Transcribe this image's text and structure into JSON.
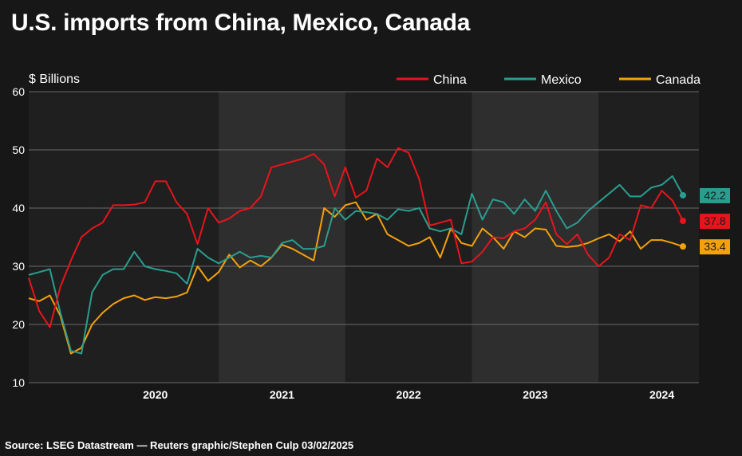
{
  "title": "U.S. imports from China, Mexico, Canada",
  "source": "Source: LSEG Datastream — Reuters graphic/Stephen Culp 03/02/2025",
  "chart_data": {
    "type": "line",
    "title": "U.S. imports from China, Mexico, Canada",
    "ylabel": "$ Billions",
    "ylim": [
      10,
      60
    ],
    "yticks": [
      10,
      20,
      30,
      40,
      50,
      60
    ],
    "xticks": [
      "2020",
      "2021",
      "2022",
      "2023",
      "2024"
    ],
    "x_start": "2019-07",
    "x_end": "2024-12",
    "grid": true,
    "legend_position": "top-right",
    "series": [
      {
        "name": "China",
        "color": "#e8141c",
        "end_label": "37.8",
        "values": [
          28.0,
          22.3,
          19.5,
          26.5,
          31.0,
          35.0,
          36.5,
          37.5,
          40.5,
          40.5,
          40.6,
          41.0,
          44.6,
          44.6,
          41.0,
          39.0,
          33.8,
          40.0,
          37.5,
          38.2,
          39.5,
          40.0,
          42.0,
          47.0,
          47.5,
          48.0,
          48.5,
          49.3,
          47.5,
          42.0,
          47.0,
          41.8,
          43.0,
          48.5,
          47.0,
          50.3,
          49.5,
          45.0,
          37.0,
          37.5,
          38.0,
          30.5,
          30.8,
          32.5,
          35.0,
          34.8,
          36.0,
          36.5,
          38.0,
          41.0,
          35.5,
          33.8,
          35.5,
          32.0,
          30.0,
          31.5,
          35.5,
          34.5,
          40.5,
          40.0,
          43.0,
          41.3,
          37.8
        ]
      },
      {
        "name": "Mexico",
        "color": "#2a9d8f",
        "end_label": "42.2",
        "values": [
          28.5,
          29.0,
          29.5,
          22.0,
          15.5,
          15.0,
          25.5,
          28.5,
          29.5,
          29.5,
          32.5,
          30.0,
          29.5,
          29.2,
          28.8,
          27.0,
          33.0,
          31.5,
          30.5,
          31.5,
          32.5,
          31.5,
          31.8,
          31.5,
          34.0,
          34.5,
          33.0,
          33.0,
          33.5,
          40.0,
          38.0,
          39.5,
          39.3,
          39.0,
          38.0,
          39.8,
          39.5,
          40.0,
          36.5,
          36.0,
          36.5,
          35.5,
          42.5,
          38.0,
          41.5,
          41.0,
          39.0,
          41.5,
          39.5,
          43.0,
          39.5,
          36.5,
          37.5,
          39.5,
          41.0,
          42.5,
          44.0,
          42.0,
          42.0,
          43.5,
          44.0,
          45.5,
          42.2
        ]
      },
      {
        "name": "Canada",
        "color": "#f4a10b",
        "end_label": "33.4",
        "values": [
          24.5,
          24.0,
          25.0,
          21.5,
          15.0,
          16.0,
          20.0,
          22.0,
          23.5,
          24.5,
          25.0,
          24.2,
          24.7,
          24.5,
          24.8,
          25.5,
          30.0,
          27.5,
          29.0,
          32.0,
          29.8,
          31.0,
          30.0,
          31.5,
          33.7,
          33.0,
          32.0,
          31.0,
          40.0,
          38.5,
          40.5,
          41.0,
          38.0,
          39.0,
          35.5,
          34.5,
          33.5,
          34.0,
          35.0,
          31.5,
          36.5,
          34.0,
          33.5,
          36.5,
          35.0,
          33.0,
          36.0,
          35.0,
          36.5,
          36.3,
          33.5,
          33.3,
          33.5,
          34.0,
          34.8,
          35.5,
          34.3,
          36.0,
          33.0,
          34.5,
          34.5,
          34.0,
          33.4
        ]
      }
    ]
  }
}
